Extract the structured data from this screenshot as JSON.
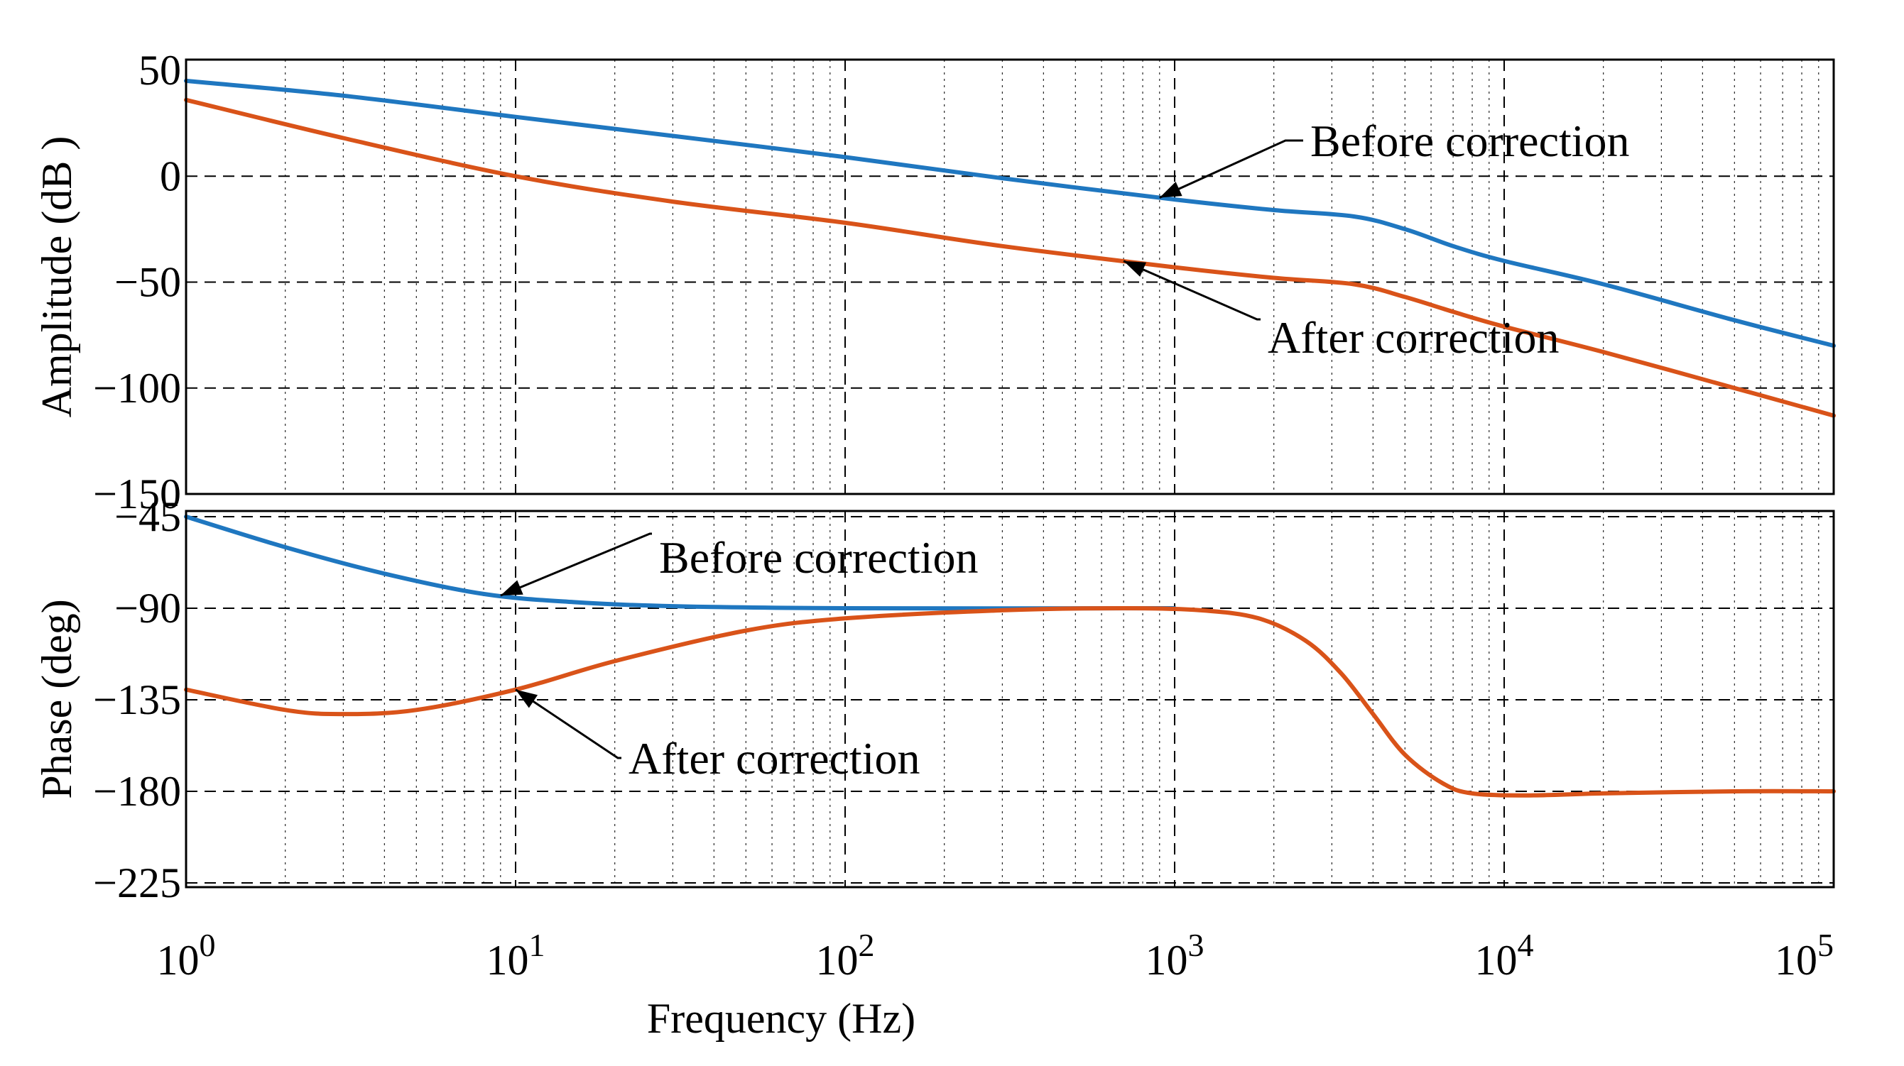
{
  "chart_data": {
    "type": "line",
    "xscale": "log",
    "xlabel": "Frequency (Hz)",
    "xlim": [
      1,
      100000
    ],
    "xticks": [
      {
        "base": "10",
        "exp": "0"
      },
      {
        "base": "10",
        "exp": "1"
      },
      {
        "base": "10",
        "exp": "2"
      },
      {
        "base": "10",
        "exp": "3"
      },
      {
        "base": "10",
        "exp": "4"
      },
      {
        "base": "10",
        "exp": "5"
      }
    ],
    "colors": {
      "before": "#1f77c0",
      "after": "#d95319"
    },
    "panels": [
      {
        "id": "amplitude",
        "ylabel": "Amplitude (dB )",
        "ylim": [
          -150,
          50
        ],
        "yticks": [
          50,
          0,
          -50,
          -100,
          -150
        ],
        "ytick_labels": [
          "50",
          "0",
          "−50",
          "−100",
          "−150"
        ],
        "series": [
          {
            "name": "Before correction",
            "points": [
              [
                1,
                45
              ],
              [
                3,
                38
              ],
              [
                10,
                28
              ],
              [
                30,
                19
              ],
              [
                100,
                9
              ],
              [
                300,
                -1
              ],
              [
                1000,
                -11
              ],
              [
                2000,
                -16
              ],
              [
                3500,
                -19
              ],
              [
                5000,
                -25
              ],
              [
                7000,
                -33
              ],
              [
                10000,
                -40
              ],
              [
                20000,
                -51
              ],
              [
                50000,
                -68
              ],
              [
                100000,
                -80
              ]
            ]
          },
          {
            "name": "After correction",
            "points": [
              [
                1,
                36
              ],
              [
                3,
                18
              ],
              [
                10,
                0
              ],
              [
                30,
                -12
              ],
              [
                100,
                -22
              ],
              [
                300,
                -33
              ],
              [
                1000,
                -43
              ],
              [
                2000,
                -48
              ],
              [
                3500,
                -51
              ],
              [
                5000,
                -57
              ],
              [
                7000,
                -64
              ],
              [
                10000,
                -71
              ],
              [
                20000,
                -83
              ],
              [
                50000,
                -100
              ],
              [
                100000,
                -113
              ]
            ]
          }
        ],
        "annotations": [
          {
            "text": "Before correction",
            "series": 0,
            "at_x": 900
          },
          {
            "text": "After correction",
            "series": 1,
            "at_x": 700
          }
        ]
      },
      {
        "id": "phase",
        "ylabel": "Phase (deg)",
        "ylim": [
          -225,
          -45
        ],
        "yticks": [
          -45,
          -90,
          -135,
          -180,
          -225
        ],
        "ytick_labels": [
          "−45",
          "−90",
          "−135",
          "−180",
          "−225"
        ],
        "series": [
          {
            "name": "Before correction",
            "points": [
              [
                1,
                -45
              ],
              [
                2,
                -60
              ],
              [
                4,
                -73
              ],
              [
                8,
                -83
              ],
              [
                15,
                -87
              ],
              [
                30,
                -89
              ],
              [
                100,
                -90
              ],
              [
                1000,
                -90
              ]
            ]
          },
          {
            "name": "After correction",
            "points": [
              [
                1,
                -130
              ],
              [
                2,
                -140
              ],
              [
                3,
                -142
              ],
              [
                5,
                -140
              ],
              [
                10,
                -130
              ],
              [
                20,
                -116
              ],
              [
                50,
                -101
              ],
              [
                100,
                -95
              ],
              [
                300,
                -91
              ],
              [
                700,
                -90
              ],
              [
                1200,
                -91
              ],
              [
                1800,
                -95
              ],
              [
                2500,
                -106
              ],
              [
                3200,
                -122
              ],
              [
                4000,
                -142
              ],
              [
                5000,
                -162
              ],
              [
                6500,
                -176
              ],
              [
                8000,
                -181
              ],
              [
                12000,
                -182
              ],
              [
                20000,
                -181
              ],
              [
                50000,
                -180
              ],
              [
                100000,
                -180
              ]
            ]
          }
        ],
        "annotations": [
          {
            "text": "Before correction",
            "series": 0,
            "at_x": 9
          },
          {
            "text": "After correction",
            "series": 1,
            "at_x": 10
          }
        ]
      }
    ]
  }
}
